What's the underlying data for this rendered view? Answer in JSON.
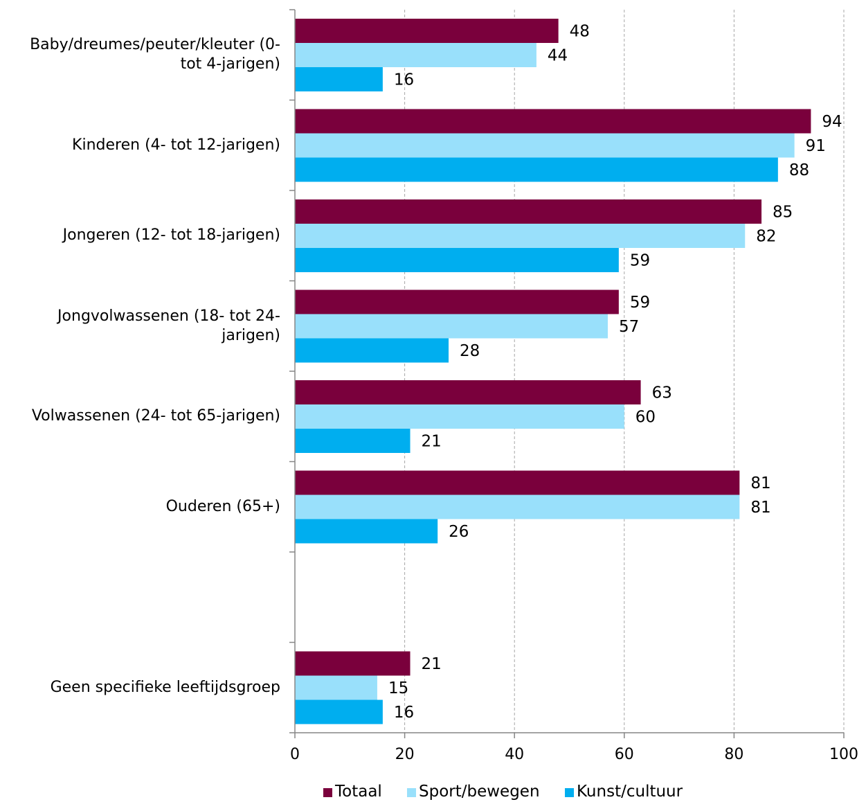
{
  "chart_data": {
    "type": "bar",
    "orientation": "horizontal",
    "categories": [
      "Baby/dreumes/peuter/kleuter (0- tot 4-jarigen)",
      "Kinderen (4- tot 12-jarigen)",
      "Jongeren (12- tot 18-jarigen)",
      "Jongvolwassenen (18- tot 24-jarigen)",
      "Volwassenen (24- tot 65-jarigen)",
      "Ouderen (65+)",
      "",
      "Geen specifieke leeftijdsgroep"
    ],
    "category_lines": [
      [
        "Baby/dreumes/peuter/kleuter (0-",
        "tot 4-jarigen)"
      ],
      [
        "Kinderen (4- tot 12-jarigen)"
      ],
      [
        "Jongeren (12- tot 18-jarigen)"
      ],
      [
        "Jongvolwassenen (18- tot 24-",
        "jarigen)"
      ],
      [
        "Volwassenen (24- tot 65-jarigen)"
      ],
      [
        "Ouderen (65+)"
      ],
      [],
      [
        "Geen specifieke leeftijdsgroep"
      ]
    ],
    "series": [
      {
        "name": "Totaal",
        "color": "#7a003c",
        "values": [
          48,
          94,
          85,
          59,
          63,
          81,
          null,
          21
        ],
        "labels": [
          "48",
          "94",
          "85",
          "59",
          "63",
          "81",
          null,
          "21"
        ]
      },
      {
        "name": "Sport/bewegen",
        "color": "#99e0fb",
        "values": [
          44,
          91,
          82,
          57,
          60,
          81,
          null,
          15
        ],
        "labels": [
          "44",
          "91",
          "82",
          "57",
          "60",
          "81",
          null,
          "15"
        ]
      },
      {
        "name": "Kunst/cultuur",
        "color": "#00aeef",
        "values": [
          16,
          88,
          59,
          28,
          21,
          26,
          null,
          16
        ],
        "labels": [
          "16",
          "88",
          "59",
          "28",
          "21",
          "26",
          null,
          "16"
        ]
      }
    ],
    "xlim": [
      0,
      100
    ],
    "xticks": [
      "0",
      "20",
      "40",
      "60",
      "80",
      "100"
    ],
    "grid": true,
    "legend": "bottom"
  }
}
